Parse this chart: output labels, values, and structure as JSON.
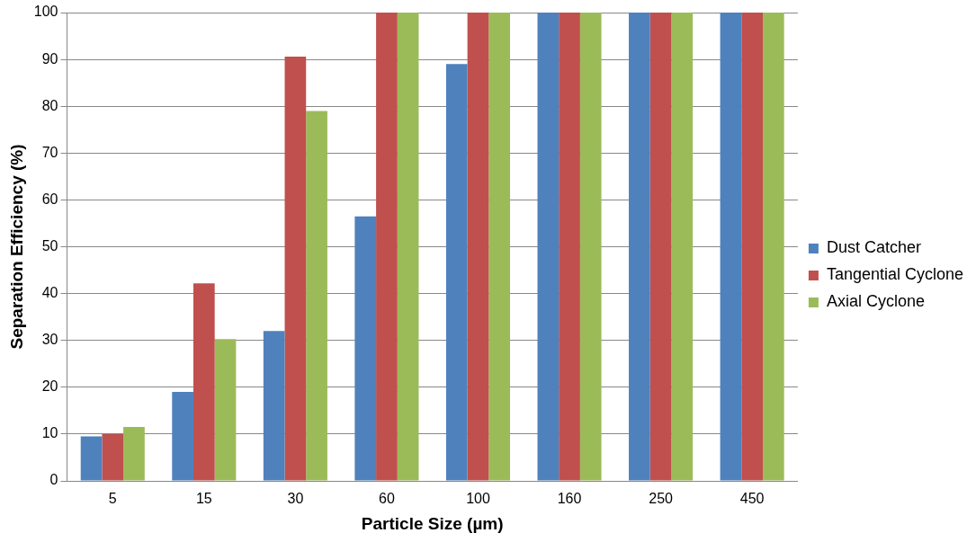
{
  "chart_data": {
    "type": "bar",
    "xlabel": "Particle Size (µm)",
    "ylabel": "Separation Efficiency (%)",
    "categories": [
      "5",
      "15",
      "30",
      "60",
      "100",
      "160",
      "250",
      "450"
    ],
    "series": [
      {
        "name": "Dust Catcher",
        "color": "#4f81bd",
        "values": [
          9.5,
          19,
          32,
          56.5,
          89,
          100,
          100,
          100
        ]
      },
      {
        "name": "Tangential Cyclone",
        "color": "#c0504d",
        "values": [
          10,
          42.2,
          90.6,
          100,
          100,
          100,
          100,
          100
        ]
      },
      {
        "name": "Axial Cyclone",
        "color": "#9bbb59",
        "values": [
          11.5,
          30.3,
          79,
          100,
          100,
          100,
          100,
          100
        ]
      }
    ],
    "ylim": [
      0,
      100
    ],
    "yticks": [
      0,
      10,
      20,
      30,
      40,
      50,
      60,
      70,
      80,
      90,
      100
    ],
    "grid": "y",
    "legend": "right"
  }
}
